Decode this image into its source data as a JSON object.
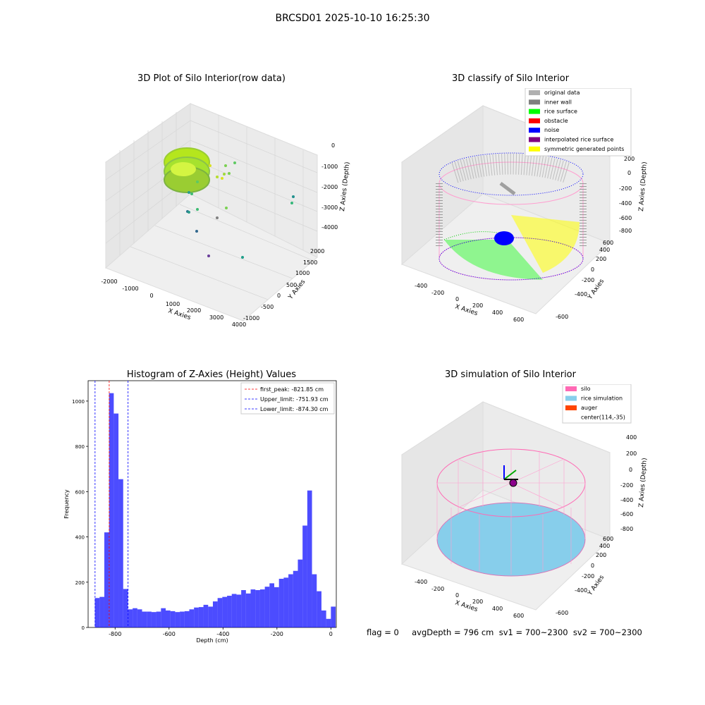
{
  "figure": {
    "suptitle": "BRCSD01 2025-10-10 16:25:30",
    "footer": "flag = 0     avgDepth = 796 cm  sv1 = 700~2300  sv2 = 700~2300"
  },
  "panels": {
    "raw": {
      "title": "3D Plot of Silo Interior(row data)",
      "xlabel": "X Axies",
      "ylabel": "Y Axies",
      "zlabel": "Z Axies (Depth)",
      "xticks": [
        "-2000",
        "-1000",
        "0",
        "1000",
        "2000",
        "3000",
        "4000"
      ],
      "yticks": [
        "-1000",
        "-500",
        "0",
        "500",
        "1000",
        "1500",
        "2000"
      ],
      "zticks": [
        "0",
        "-1000",
        "-2000",
        "-3000",
        "-4000"
      ]
    },
    "classify": {
      "title": "3D classify of Silo Interior",
      "xlabel": "X Axies",
      "ylabel": "Y Axies",
      "zlabel": "Z Axies (Depth)",
      "xticks": [
        "-400",
        "-200",
        "0",
        "200",
        "400",
        "600"
      ],
      "yticks": [
        "-600",
        "-400",
        "-200",
        "0",
        "200",
        "400",
        "600"
      ],
      "zticks": [
        "200",
        "0",
        "-200",
        "-400",
        "-600",
        "-800"
      ],
      "legend": [
        {
          "label": "original data",
          "color": "#b0b0b0"
        },
        {
          "label": "inner wall",
          "color": "#808080"
        },
        {
          "label": "rice surface",
          "color": "#00ff00"
        },
        {
          "label": "obstacle",
          "color": "#ff0000"
        },
        {
          "label": "noise",
          "color": "#0000ff"
        },
        {
          "label": "interpolated rice surface",
          "color": "#800080"
        },
        {
          "label": "symmetric generated points",
          "color": "#ffff00"
        }
      ]
    },
    "simulation": {
      "title": "3D simulation of Silo Interior",
      "xlabel": "X Axies",
      "ylabel": "Y Axies",
      "zlabel": "Z Axies (Depth)",
      "xticks": [
        "-400",
        "-200",
        "0",
        "200",
        "400",
        "600"
      ],
      "yticks": [
        "-600",
        "-400",
        "-200",
        "0",
        "200",
        "400",
        "600"
      ],
      "zticks": [
        "400",
        "200",
        "0",
        "-200",
        "-400",
        "-600",
        "-800"
      ],
      "legend": [
        {
          "label": "silo",
          "color": "#ff69b4"
        },
        {
          "label": "rice simulation",
          "color": "#87ceeb"
        },
        {
          "label": "auger",
          "color": "#ff4500"
        },
        {
          "label": "center(114,-35)",
          "color": ""
        }
      ]
    }
  },
  "chart_data": {
    "type": "bar",
    "title": "Histogram of Z-Axies (Height) Values",
    "xlabel": "Depth (cm)",
    "ylabel": "Frequency",
    "xlim": [
      -900,
      20
    ],
    "ylim": [
      0,
      1090
    ],
    "bin_start": -875,
    "bin_width": 17.5,
    "values": [
      130,
      135,
      420,
      1035,
      945,
      655,
      170,
      80,
      85,
      80,
      70,
      70,
      68,
      70,
      85,
      75,
      72,
      68,
      70,
      72,
      80,
      88,
      90,
      100,
      92,
      115,
      130,
      135,
      140,
      148,
      145,
      165,
      150,
      168,
      165,
      168,
      180,
      195,
      178,
      215,
      220,
      235,
      250,
      300,
      450,
      605,
      235,
      160,
      75,
      38,
      92
    ],
    "xticks": [
      "-800",
      "-600",
      "-400",
      "-200",
      "0"
    ],
    "yticks": [
      "0",
      "200",
      "400",
      "600",
      "800",
      "1000"
    ],
    "bar_color": "#0000ff",
    "lines": [
      {
        "label": "first_peak: -821.85 cm",
        "x": -821.85,
        "color": "#ff0000"
      },
      {
        "label": "Upper_limit: -751.93 cm",
        "x": -751.93,
        "color": "#0000ff"
      },
      {
        "label": "Lower_limit: -874.30 cm",
        "x": -874.3,
        "color": "#0000ff"
      }
    ],
    "legend_position": "top-right"
  }
}
